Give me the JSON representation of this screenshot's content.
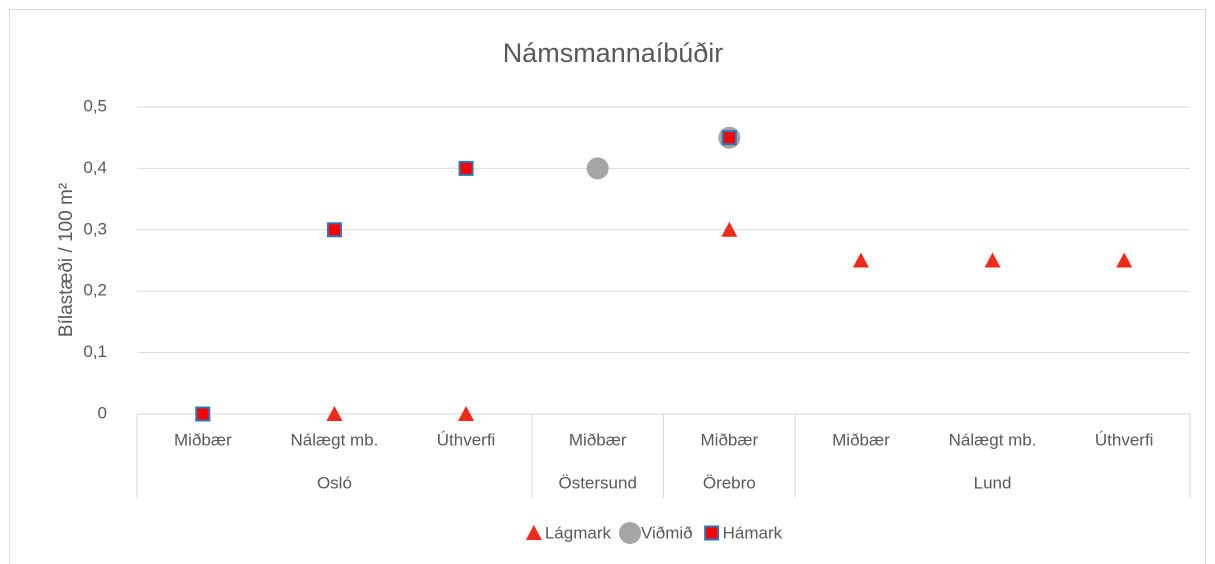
{
  "chart_data": {
    "type": "scatter",
    "title": "Námsmannaíbúðir",
    "y_label": "Bílastæði / 100 m²",
    "groups": [
      {
        "label": "Osló",
        "categories": [
          "Miðbær",
          "Nálægt mb.",
          "Úthverfi"
        ]
      },
      {
        "label": "Östersund",
        "categories": [
          "Miðbær"
        ]
      },
      {
        "label": "Örebro",
        "categories": [
          "Miðbær"
        ]
      },
      {
        "label": "Lund",
        "categories": [
          "Miðbær",
          "Nálægt mb.",
          "Úthverfi"
        ]
      }
    ],
    "series": [
      {
        "name": "Lágmark",
        "marker": "triangle",
        "color": "#ee2b1a",
        "values": [
          0,
          0,
          0,
          null,
          0.3,
          0.25,
          0.25,
          0.25
        ]
      },
      {
        "name": "Viðmið",
        "marker": "circle",
        "color": "#a5a5a5",
        "values": [
          null,
          null,
          null,
          0.4,
          0.45,
          null,
          null,
          null
        ]
      },
      {
        "name": "Hámark",
        "marker": "square",
        "color": "#ff0000",
        "edgecolor": "#2e75b6",
        "values": [
          0,
          0.3,
          0.4,
          null,
          0.45,
          null,
          null,
          null
        ]
      }
    ],
    "ylim": [
      0,
      0.5
    ],
    "yticks": [
      0,
      {
        "value": 0.1,
        "label": "0,1"
      },
      {
        "value": 0.2,
        "label": "0,2"
      },
      {
        "value": 0.3,
        "label": "0,3"
      },
      {
        "value": 0.4,
        "label": "0,4"
      },
      {
        "value": 0.5,
        "label": "0,5"
      }
    ],
    "grid": true,
    "legend": "bottom"
  }
}
